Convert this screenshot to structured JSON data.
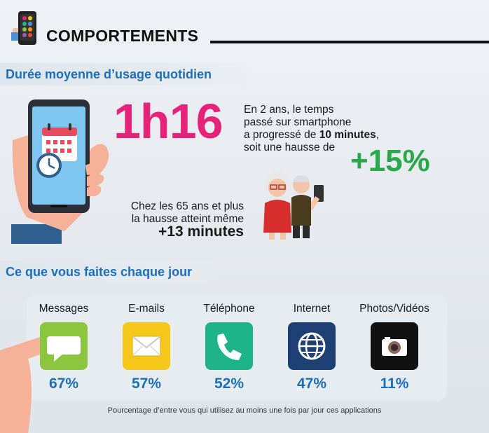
{
  "header": {
    "title": "COMPORTEMENTS",
    "icon": "smartphone-icon"
  },
  "section1": {
    "title": "Durée moyenne d’usage quotidien",
    "duration": "1h16",
    "trend_line1": "En 2 ans, le temps",
    "trend_line2": "passé sur smartphone",
    "trend_line3_prefix": "a progressé de ",
    "trend_line3_strong": "10 minutes",
    "trend_line3_suffix": ",",
    "trend_line4": "soit une hausse de",
    "trend_pct": "+15%",
    "senior_line1": "Chez les 65 ans et plus",
    "senior_line2": "la hausse atteint même",
    "senior_value": "+13 minutes"
  },
  "section2": {
    "title": "Ce que vous faites chaque jour",
    "apps": [
      {
        "label": "Messages",
        "pct": "67%",
        "color": "#8cc63f",
        "icon": "message-icon"
      },
      {
        "label": "E-mails",
        "pct": "57%",
        "color": "#f6c71b",
        "icon": "envelope-icon"
      },
      {
        "label": "Téléphone",
        "pct": "52%",
        "color": "#1db48a",
        "icon": "phone-icon"
      },
      {
        "label": "Internet",
        "pct": "47%",
        "color": "#1d3f73",
        "icon": "globe-icon"
      },
      {
        "label": "Photos/Vidéos",
        "pct": "11%",
        "color": "#111111",
        "icon": "camera-icon"
      }
    ],
    "footnote": "Pourcentage d’entre vous qui utilisez au moins une fois par jour ces applications"
  },
  "colors": {
    "accent_blue": "#1d6fb8",
    "duration_pink": "#e6237a",
    "trend_green": "#2aa84a"
  }
}
